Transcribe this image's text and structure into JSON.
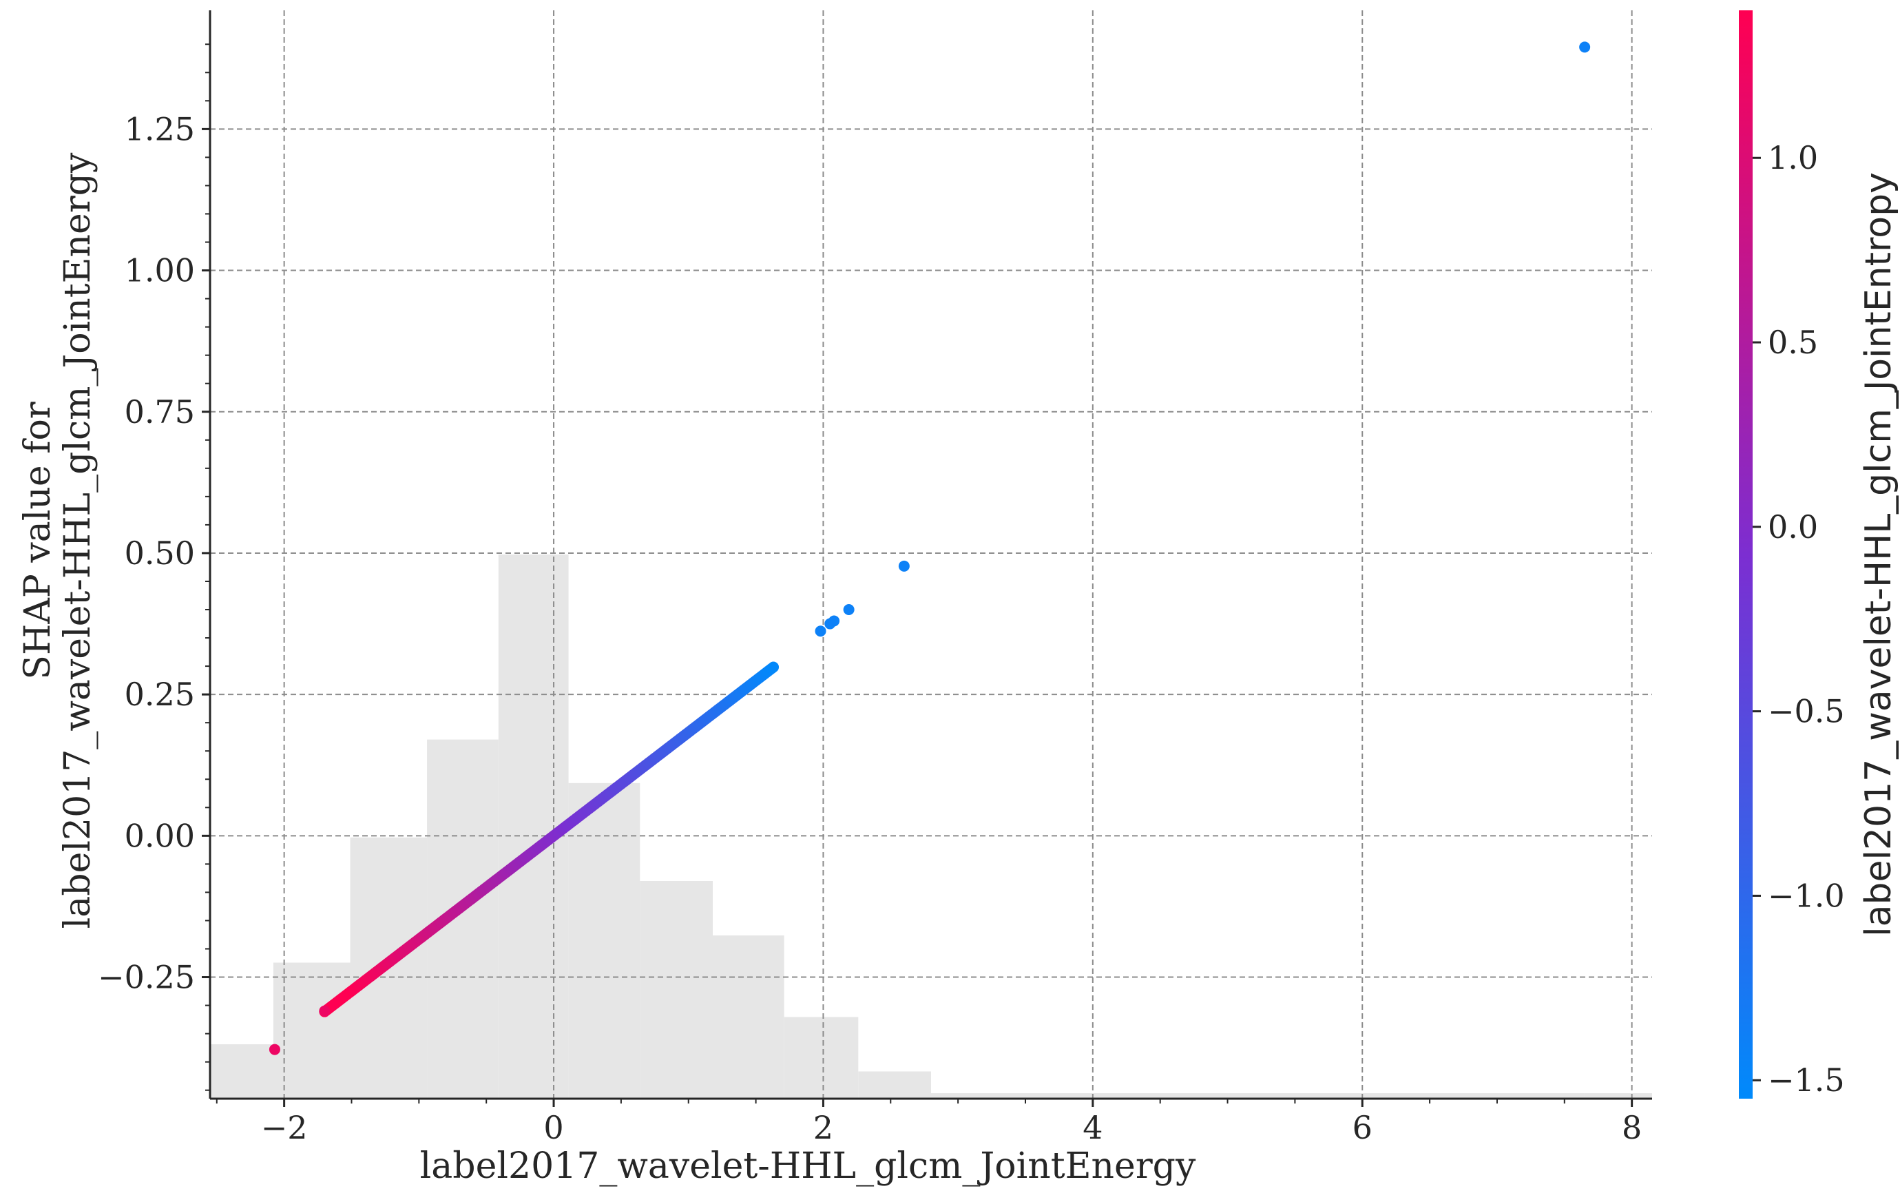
{
  "chart_data": {
    "type": "scatter",
    "title": "",
    "xlabel": "label2017_wavelet-HHL_glcm_JointEnergy",
    "ylabel_lines": [
      "SHAP value for",
      "label2017_wavelet-HHL_glcm_JointEnergy"
    ],
    "xlim": [
      -2.55,
      8.15
    ],
    "ylim": [
      -0.465,
      1.46
    ],
    "x_ticks": [
      -2,
      0,
      2,
      4,
      6,
      8
    ],
    "x_tick_labels": [
      "−2",
      "0",
      "2",
      "4",
      "6",
      "8"
    ],
    "y_ticks": [
      -0.25,
      0.0,
      0.25,
      0.5,
      0.75,
      1.0,
      1.25
    ],
    "y_tick_labels": [
      "−0.25",
      "0.00",
      "0.25",
      "0.50",
      "0.75",
      "1.00",
      "1.25"
    ],
    "grid": true,
    "colorbar": {
      "label": "label2017_wavelet-HHL_glcm_JointEntropy",
      "range": [
        -1.55,
        1.4
      ],
      "ticks": [
        -1.5,
        -1.0,
        -0.5,
        0.0,
        0.5,
        1.0
      ],
      "tick_labels": [
        "−1.5",
        "−1.0",
        "−0.5",
        "0.0",
        "0.5",
        "1.0"
      ],
      "colors": {
        "low": "#008afb",
        "mid": "#7c2ed1",
        "high": "#ff0052"
      }
    },
    "histogram": {
      "color": "#e6e6e6",
      "bin_edges": [
        -2.65,
        -2.08,
        -1.51,
        -0.94,
        -0.41,
        0.11,
        0.64,
        1.18,
        1.71,
        2.26,
        2.8,
        7.65,
        8.15
      ],
      "heights": [
        0.05,
        0.125,
        0.24,
        0.33,
        0.5,
        0.29,
        0.2,
        0.15,
        0.075,
        0.025,
        0.005,
        0.005
      ]
    },
    "series": [
      {
        "points_line": {
          "x_start": -1.7,
          "x_end": 1.63,
          "slope": 0.183,
          "color_intercept": 0.0,
          "color_slope": -0.93
        },
        "outliers": [
          {
            "x": -2.07,
            "y": -0.378,
            "c": 1.2
          },
          {
            "x": -1.7,
            "y": -0.31,
            "c": 1.2
          },
          {
            "x": 1.98,
            "y": 0.362,
            "c": -1.4
          },
          {
            "x": 2.05,
            "y": 0.375,
            "c": -1.4
          },
          {
            "x": 2.08,
            "y": 0.38,
            "c": -1.4
          },
          {
            "x": 2.19,
            "y": 0.4,
            "c": -1.4
          },
          {
            "x": 2.6,
            "y": 0.477,
            "c": -1.4
          },
          {
            "x": 7.65,
            "y": 1.395,
            "c": -1.4
          }
        ]
      }
    ]
  }
}
